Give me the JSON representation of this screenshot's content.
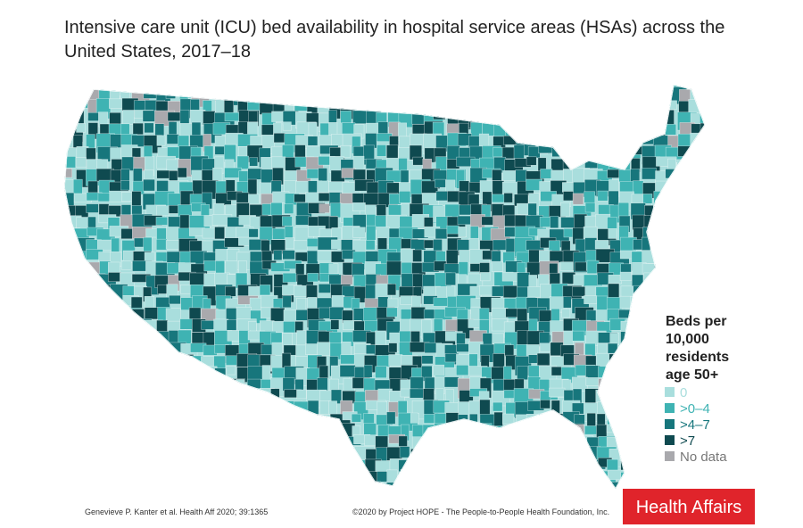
{
  "title": "Intensive care unit (ICU) bed availability in hospital service areas (HSAs) across the United States, 2017–18",
  "legend": {
    "title_lines": [
      "Beds per",
      "10,000",
      "residents",
      "age 50+"
    ],
    "items": [
      {
        "label": "0",
        "color": "#a9dedd"
      },
      {
        "label": ">0–4",
        "color": "#3fb3b3"
      },
      {
        "label": ">4–7",
        "color": "#17767c"
      },
      {
        "label": ">7",
        "color": "#0f4a50"
      },
      {
        "label": "No data",
        "color": "#a9a9ad"
      }
    ]
  },
  "footer": {
    "citation": "Genevieve P. Kanter et al. Health Aff 2020; 39:1365",
    "copyright": "©2020 by Project HOPE - The People-to-People Health Foundation, Inc.",
    "logo": "Health Affairs"
  }
}
